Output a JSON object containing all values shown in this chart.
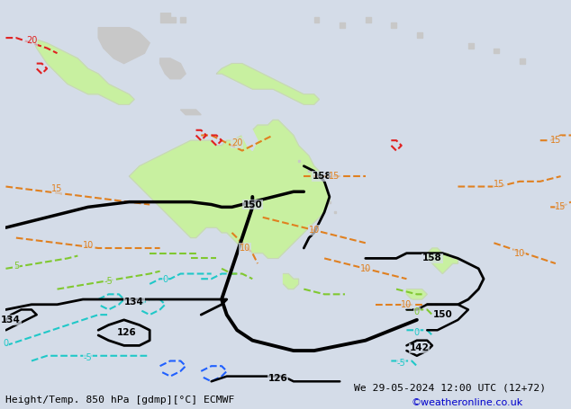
{
  "title_left": "Height/Temp. 850 hPa [gdmp][°C] ECMWF",
  "title_right": "We 29-05-2024 12:00 UTC (12+72)",
  "credit": "©weatheronline.co.uk",
  "bg_color": "#d4dce8",
  "ocean_color": "#d4dce8",
  "land_color": "#c8c8c8",
  "australia_color": "#c8f0a0",
  "black_contour_color": "#000000",
  "orange_contour_color": "#e08020",
  "red_contour_color": "#e02020",
  "cyan_contour_color": "#20c8c8",
  "green_contour_color": "#80c830",
  "blue_contour_color": "#2060ff",
  "credit_color": "#0000cc",
  "xlim": [
    90,
    200
  ],
  "ylim": [
    -65,
    10
  ]
}
